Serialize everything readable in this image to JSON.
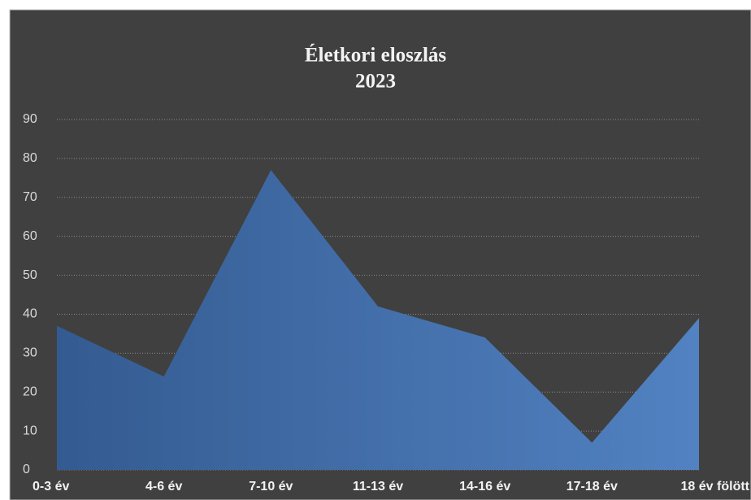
{
  "chart_data": {
    "type": "area",
    "title": "Életkori eloszlás",
    "subtitle": "2023",
    "categories": [
      "0-3 év",
      "4-6 év",
      "7-10 év",
      "11-13 év",
      "14-16 év",
      "17-18 év",
      "18 év fölött"
    ],
    "series": [
      {
        "name": "Életkori eloszlás",
        "color": "#4f81bd",
        "values": [
          37,
          24,
          77,
          42,
          34,
          7,
          39
        ]
      }
    ],
    "ylim": [
      0,
      90
    ],
    "yticks": [
      0,
      10,
      20,
      30,
      40,
      50,
      60,
      70,
      80,
      90
    ],
    "grid": true
  }
}
